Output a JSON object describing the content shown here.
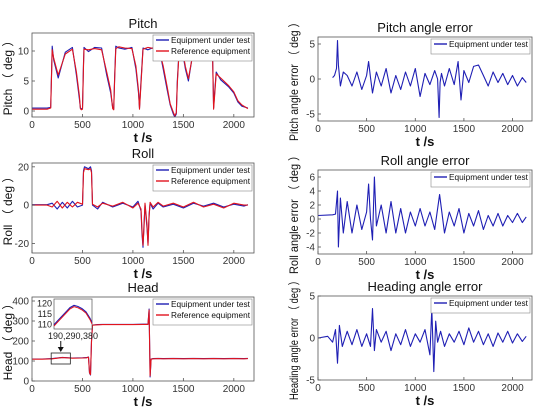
{
  "colors": {
    "test": "#1f1fb4",
    "reference": "#e0141e",
    "axis": "#555555"
  },
  "chart_data": [
    {
      "id": "pitch",
      "type": "line",
      "title": "Pitch",
      "xlabel": "t /s",
      "ylabel": "Pitch （ deg ）",
      "xlim": [
        0,
        2200
      ],
      "ylim": [
        -1,
        13
      ],
      "xticks": [
        0,
        500,
        1000,
        1500,
        2000
      ],
      "yticks": [
        0,
        5,
        10
      ],
      "legend": "top-right",
      "series": [
        {
          "name": "Equipment under test",
          "color": "#1f1fb4",
          "x": [
            0,
            150,
            185,
            200,
            215,
            260,
            330,
            400,
            440,
            470,
            480,
            490,
            500,
            510,
            515,
            560,
            620,
            690,
            740,
            780,
            800,
            810,
            820,
            830,
            860,
            920,
            990,
            1030,
            1055,
            1065,
            1080,
            1100,
            1150,
            1210,
            1260,
            1300,
            1340,
            1370,
            1400,
            1415,
            1430,
            1440,
            1460,
            1480,
            1500,
            1520,
            1550,
            1600,
            1650,
            1700,
            1750,
            1790,
            1800,
            1810,
            1825,
            1870,
            1950,
            2000,
            2040,
            2080,
            2140
          ],
          "y": [
            0.5,
            0.5,
            0.6,
            10.8,
            8.5,
            5.5,
            9.8,
            10.6,
            6,
            2,
            0.5,
            0.3,
            0.5,
            8,
            10.6,
            9.9,
            10.6,
            10.5,
            6,
            3,
            0.5,
            0.3,
            6,
            10.8,
            10.5,
            10.3,
            10.6,
            7,
            3,
            0.5,
            5,
            10.5,
            10.2,
            10.6,
            10.5,
            7,
            3.5,
            1,
            -0.5,
            -1,
            -0.5,
            5,
            10.8,
            10.4,
            9,
            7,
            5,
            10.3,
            11,
            10.8,
            10.6,
            9,
            0.5,
            3,
            6.5,
            5.2,
            4,
            3,
            1.5,
            0.8,
            0.5
          ]
        },
        {
          "name": "Reference equipment",
          "color": "#e0141e",
          "x": [
            0,
            150,
            185,
            200,
            215,
            260,
            330,
            400,
            440,
            470,
            480,
            490,
            500,
            510,
            515,
            560,
            620,
            690,
            740,
            780,
            800,
            810,
            820,
            830,
            860,
            920,
            990,
            1030,
            1055,
            1065,
            1080,
            1100,
            1150,
            1210,
            1260,
            1300,
            1340,
            1370,
            1400,
            1415,
            1430,
            1440,
            1460,
            1480,
            1500,
            1520,
            1550,
            1600,
            1650,
            1700,
            1750,
            1790,
            1800,
            1810,
            1825,
            1870,
            1950,
            2000,
            2040,
            2080,
            2140
          ],
          "y": [
            0.3,
            0.3,
            0.5,
            10.2,
            8.8,
            6,
            9.5,
            10.3,
            6.5,
            2.5,
            0.4,
            0.2,
            0.3,
            7.5,
            10.3,
            10.2,
            10.4,
            10.2,
            6.5,
            3.5,
            0.4,
            0.2,
            5.5,
            10.4,
            10.7,
            10.5,
            10.4,
            7.5,
            3.5,
            0.3,
            4.5,
            10.3,
            10.6,
            10.4,
            10.3,
            7.5,
            4,
            1.2,
            -0.2,
            -0.8,
            -0.3,
            4.5,
            10.5,
            10.6,
            9.3,
            7.4,
            5.4,
            10.1,
            10.8,
            10.6,
            10.4,
            9.3,
            0.3,
            2.5,
            6.2,
            5.5,
            4.2,
            3.2,
            1.7,
            1,
            0.4
          ]
        }
      ]
    },
    {
      "id": "pitch-error",
      "type": "line",
      "title": "Pitch angle error",
      "xlabel": "t /s",
      "ylabel": "Pitch angle error （ deg ）",
      "xlim": [
        0,
        2200
      ],
      "ylim": [
        -6,
        6
      ],
      "xticks": [
        0,
        500,
        1000,
        1500,
        2000
      ],
      "yticks": [
        -5,
        0,
        5
      ],
      "legend": "top-right",
      "series": [
        {
          "name": "Equipment under test",
          "color": "#1f1fb4",
          "x": [
            150,
            170,
            190,
            200,
            210,
            230,
            260,
            300,
            350,
            400,
            450,
            500,
            520,
            540,
            560,
            600,
            650,
            700,
            750,
            800,
            850,
            900,
            950,
            1000,
            1050,
            1100,
            1150,
            1200,
            1230,
            1245,
            1255,
            1270,
            1300,
            1350,
            1400,
            1440,
            1470,
            1500,
            1550,
            1600,
            1650,
            1700,
            1750,
            1800,
            1850,
            1900,
            1950,
            2000,
            2050,
            2100,
            2140
          ],
          "y": [
            0.2,
            0.5,
            1.5,
            5.5,
            2,
            -1,
            1,
            0.5,
            -1,
            1,
            -1.5,
            0.5,
            2.5,
            0.2,
            -2,
            1,
            -1,
            1.5,
            -2,
            0.5,
            -1.5,
            1,
            -1,
            1.5,
            -2.5,
            0.8,
            -0.8,
            1.2,
            0,
            -5.5,
            -0.5,
            0.8,
            -1,
            1.5,
            -0.8,
            2.5,
            -3,
            1.2,
            -0.5,
            1.8,
            2,
            0.5,
            -1,
            1,
            -0.5,
            0.8,
            -0.8,
            0.5,
            -1,
            0.2,
            -0.5
          ]
        }
      ]
    },
    {
      "id": "roll",
      "type": "line",
      "title": "Roll",
      "xlabel": "t /s",
      "ylabel": "Roll （ deg ）",
      "xlim": [
        0,
        2200
      ],
      "ylim": [
        -25,
        22
      ],
      "xticks": [
        0,
        500,
        1000,
        1500,
        2000
      ],
      "yticks": [
        -20,
        0,
        20
      ],
      "legend": "top-right",
      "series": [
        {
          "name": "Equipment under test",
          "color": "#1f1fb4",
          "x": [
            0,
            150,
            200,
            250,
            300,
            350,
            400,
            450,
            500,
            510,
            520,
            560,
            580,
            590,
            600,
            650,
            700,
            800,
            900,
            1000,
            1050,
            1080,
            1090,
            1100,
            1110,
            1120,
            1140,
            1150,
            1160,
            1170,
            1200,
            1250,
            1300,
            1400,
            1500,
            1600,
            1700,
            1800,
            1900,
            2000,
            2100,
            2140
          ],
          "y": [
            0.2,
            0.2,
            1,
            -2,
            1.5,
            -1.5,
            2,
            -1,
            0,
            18,
            20,
            19,
            20,
            18,
            0,
            -2,
            1.5,
            -1,
            1,
            -1,
            2,
            -3,
            -15,
            -22,
            -10,
            0,
            -12,
            -20,
            -5,
            1,
            -2,
            1,
            -1,
            0.5,
            -1.5,
            1,
            -0.5,
            1,
            -1,
            0.5,
            -0.5,
            0.2
          ]
        },
        {
          "name": "Reference equipment",
          "color": "#e0141e",
          "x": [
            0,
            150,
            200,
            250,
            300,
            350,
            400,
            450,
            500,
            510,
            520,
            560,
            580,
            590,
            600,
            650,
            700,
            800,
            900,
            1000,
            1050,
            1080,
            1090,
            1100,
            1110,
            1120,
            1140,
            1150,
            1160,
            1170,
            1200,
            1250,
            1300,
            1400,
            1500,
            1600,
            1700,
            1800,
            1900,
            2000,
            2100,
            2140
          ],
          "y": [
            0,
            0,
            -1,
            2,
            -1.5,
            1.5,
            -1,
            1.5,
            0.5,
            17,
            19,
            18.5,
            19,
            17,
            0.5,
            -1,
            1,
            -0.5,
            1.5,
            -1.5,
            1,
            -2,
            -13,
            -21,
            -12,
            1,
            -10,
            -21,
            -6,
            1.5,
            -1,
            1.5,
            -0.5,
            1,
            -1,
            1.5,
            -1,
            0.5,
            -1.5,
            1,
            0,
            0
          ]
        }
      ]
    },
    {
      "id": "roll-error",
      "type": "line",
      "title": "Roll angle error",
      "xlabel": "t /s",
      "ylabel": "Roll angle error （ deg ）",
      "xlim": [
        0,
        2200
      ],
      "ylim": [
        -5,
        7
      ],
      "xticks": [
        0,
        500,
        1000,
        1500,
        2000
      ],
      "yticks": [
        -4,
        -2,
        0,
        2,
        4,
        6
      ],
      "legend": "top-right",
      "series": [
        {
          "name": "Equipment under test",
          "color": "#1f1fb4",
          "x": [
            0,
            150,
            180,
            200,
            210,
            230,
            260,
            300,
            350,
            400,
            450,
            500,
            520,
            540,
            560,
            580,
            600,
            650,
            700,
            750,
            800,
            850,
            900,
            950,
            1000,
            1050,
            1100,
            1150,
            1200,
            1250,
            1300,
            1350,
            1400,
            1450,
            1500,
            1550,
            1600,
            1650,
            1700,
            1750,
            1800,
            1850,
            1900,
            1950,
            2000,
            2050,
            2100,
            2140
          ],
          "y": [
            0.5,
            0.6,
            0.7,
            4,
            -4,
            3,
            -2,
            2.5,
            -2,
            2,
            -1.5,
            1,
            5,
            0,
            -3,
            6,
            -1,
            2,
            -2,
            2.5,
            -2,
            1.5,
            -2,
            1,
            -1,
            1.5,
            -1,
            1,
            -1.5,
            3.5,
            -2,
            1,
            -1,
            1.5,
            -2,
            0.8,
            -1,
            1.2,
            -1.5,
            0.5,
            -1,
            0.8,
            -1,
            0.5,
            -0.5,
            0.8,
            -0.5,
            0.3
          ]
        }
      ]
    },
    {
      "id": "head",
      "type": "line",
      "title": "Head",
      "xlabel": "t /s",
      "ylabel": "Head （ deg ）",
      "xlim": [
        0,
        2200
      ],
      "ylim": [
        0,
        420
      ],
      "xticks": [
        0,
        500,
        1000,
        1500,
        2000
      ],
      "yticks": [
        0,
        100,
        200,
        300,
        400
      ],
      "legend": "top-right",
      "inset": {
        "xlim": [
          190,
          380
        ],
        "ylim": [
          108,
          122
        ],
        "xticks": [
          190,
          290,
          380
        ],
        "yticks": [
          110,
          115,
          120
        ],
        "x": [
          190,
          210,
          230,
          250,
          270,
          290,
          310,
          330,
          350,
          370,
          380
        ],
        "y": [
          110,
          112,
          114,
          116,
          118,
          119,
          118.5,
          117.5,
          116,
          113,
          111
        ]
      },
      "series": [
        {
          "name": "Equipment under test",
          "color": "#1f1fb4",
          "x": [
            0,
            100,
            200,
            300,
            400,
            500,
            540,
            560,
            570,
            580,
            590,
            600,
            650,
            700,
            800,
            900,
            1000,
            1100,
            1150,
            1160,
            1170,
            1180,
            1200,
            1250,
            1300,
            1400,
            1500,
            1600,
            1700,
            1800,
            1900,
            2000,
            2100,
            2140
          ],
          "y": [
            110,
            110,
            112,
            118,
            115,
            116,
            117,
            120,
            40,
            30,
            200,
            280,
            282,
            283,
            283,
            283,
            283,
            284,
            284,
            360,
            20,
            110,
            112,
            113,
            112,
            113,
            112,
            113,
            112,
            113,
            112,
            113,
            112,
            113
          ]
        },
        {
          "name": "Reference equipment",
          "color": "#e0141e",
          "x": [
            0,
            100,
            200,
            300,
            400,
            500,
            540,
            560,
            570,
            580,
            590,
            600,
            650,
            700,
            800,
            900,
            1000,
            1100,
            1150,
            1160,
            1170,
            1180,
            1200,
            1250,
            1300,
            1400,
            1500,
            1600,
            1700,
            1800,
            1900,
            2000,
            2100,
            2140
          ],
          "y": [
            109,
            109,
            111,
            117,
            114,
            115,
            116,
            119,
            42,
            32,
            198,
            279,
            281,
            282,
            282,
            282,
            282,
            283,
            283,
            355,
            25,
            109,
            111,
            112,
            111,
            112,
            111,
            112,
            111,
            112,
            111,
            112,
            111,
            112
          ]
        }
      ]
    },
    {
      "id": "heading-error",
      "type": "line",
      "title": "Heading angle error",
      "xlabel": "t /s",
      "ylabel": "Heading angle error （ deg ）",
      "xlim": [
        0,
        2200
      ],
      "ylim": [
        -5,
        5
      ],
      "xticks": [
        0,
        500,
        1000,
        1500,
        2000
      ],
      "yticks": [
        -5,
        0,
        5
      ],
      "legend": "top-right",
      "series": [
        {
          "name": "Equipment under test",
          "color": "#1f1fb4",
          "x": [
            0,
            100,
            150,
            180,
            200,
            220,
            250,
            300,
            350,
            400,
            450,
            500,
            540,
            560,
            580,
            600,
            650,
            700,
            750,
            800,
            850,
            900,
            950,
            1000,
            1050,
            1100,
            1150,
            1170,
            1190,
            1210,
            1230,
            1260,
            1300,
            1350,
            1400,
            1450,
            1500,
            1550,
            1600,
            1650,
            1700,
            1750,
            1800,
            1850,
            1900,
            1950,
            2000,
            2050,
            2100,
            2140
          ],
          "y": [
            0,
            0.2,
            -0.5,
            1,
            -3,
            1.5,
            -1,
            0.8,
            -0.8,
            1,
            -1,
            0.5,
            -1,
            3.5,
            -1.5,
            1,
            -0.5,
            0.8,
            -1.5,
            0.5,
            -0.8,
            1,
            -1,
            0.5,
            -0.5,
            1,
            -2,
            3.5,
            -4,
            2,
            -0.5,
            0.8,
            -1,
            0.5,
            -0.5,
            0.8,
            -0.8,
            1.2,
            -0.5,
            0.8,
            -0.8,
            0.5,
            -1,
            0.6,
            -0.5,
            0.8,
            -0.6,
            0.5,
            -0.4,
            0.2
          ]
        }
      ]
    }
  ]
}
